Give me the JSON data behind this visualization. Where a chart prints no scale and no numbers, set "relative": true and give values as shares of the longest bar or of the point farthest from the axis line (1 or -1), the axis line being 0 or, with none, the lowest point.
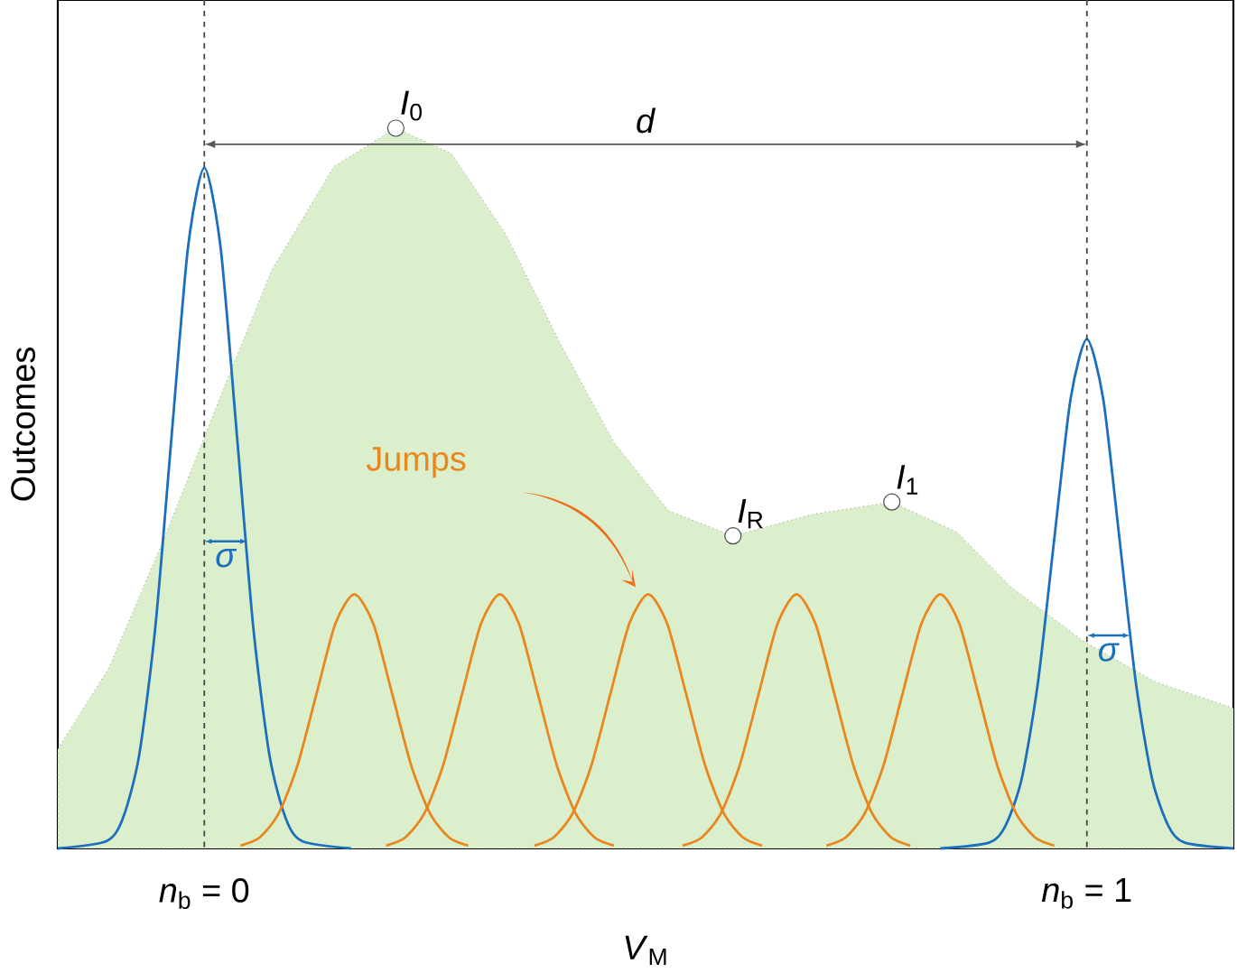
{
  "chart_data": {
    "type": "line",
    "relative": true,
    "xlabel": "*V*$_{M}$",
    "ylabel": "Outcomes",
    "xlim": [
      -0.166,
      1.166
    ],
    "xticks": [
      {
        "value": 0,
        "label": "*n*$_{b}$ = 0"
      },
      {
        "value": 1,
        "label": "*n*$_{b}$ = 1"
      }
    ],
    "series": [
      {
        "type": "area",
        "color": "#dcefcd",
        "line_style": "dotted",
        "x": [
          -0.166,
          -0.108,
          -0.047,
          0.014,
          0.076,
          0.147,
          0.217,
          0.28,
          0.342,
          0.403,
          0.464,
          0.526,
          0.599,
          0.689,
          0.779,
          0.853,
          0.914,
          0.996,
          1.078,
          1.166
        ],
        "values": [
          0.138,
          0.251,
          0.426,
          0.614,
          0.802,
          0.947,
          1.0,
          0.965,
          0.852,
          0.702,
          0.564,
          0.469,
          0.434,
          0.464,
          0.481,
          0.439,
          0.363,
          0.288,
          0.231,
          0.195
        ]
      },
      {
        "color": "#1b6fbd",
        "x": [
          -0.166,
          -0.111,
          -0.0925,
          -0.074,
          -0.0555,
          -0.037,
          -0.0185,
          0,
          0.0185,
          0.037,
          0.0555,
          0.074,
          0.0925,
          0.111,
          0.166
        ],
        "values": [
          0.0,
          0.01,
          0.041,
          0.128,
          0.307,
          0.573,
          0.834,
          0.945,
          0.834,
          0.573,
          0.307,
          0.128,
          0.041,
          0.01,
          0.0
        ]
      },
      {
        "color": "#1b6fbd",
        "x": [
          0.834,
          0.889,
          0.9075,
          0.926,
          0.9445,
          0.963,
          0.9815,
          1,
          1.0185,
          1.037,
          1.0555,
          1.074,
          1.0925,
          1.111,
          1.166
        ],
        "values": [
          0.0,
          0.008,
          0.031,
          0.096,
          0.23,
          0.429,
          0.624,
          0.707,
          0.624,
          0.429,
          0.23,
          0.096,
          0.031,
          0.008,
          0.0
        ]
      },
      {
        "color": "#e8871e",
        "x": [
          0.041,
          0.0625,
          0.084,
          0.1055,
          0.127,
          0.1485,
          0.17,
          0.1915,
          0.213,
          0.2345,
          0.256,
          0.2775,
          0.299
        ],
        "values": [
          0.004,
          0.015,
          0.048,
          0.115,
          0.214,
          0.312,
          0.353,
          0.312,
          0.214,
          0.115,
          0.048,
          0.015,
          0.004
        ]
      },
      {
        "color": "#e8871e",
        "x": [
          0.206,
          0.2275,
          0.249,
          0.2705,
          0.292,
          0.3135,
          0.335,
          0.3565,
          0.378,
          0.3995,
          0.421,
          0.4425,
          0.464
        ],
        "values": [
          0.004,
          0.015,
          0.048,
          0.115,
          0.214,
          0.312,
          0.353,
          0.312,
          0.214,
          0.115,
          0.048,
          0.015,
          0.004
        ]
      },
      {
        "color": "#e8871e",
        "x": [
          0.374,
          0.3955,
          0.417,
          0.4385,
          0.46,
          0.4815,
          0.503,
          0.5245,
          0.546,
          0.5675,
          0.589,
          0.6105,
          0.632
        ],
        "values": [
          0.004,
          0.015,
          0.048,
          0.115,
          0.214,
          0.312,
          0.353,
          0.312,
          0.214,
          0.115,
          0.048,
          0.015,
          0.004
        ]
      },
      {
        "color": "#e8871e",
        "x": [
          0.542,
          0.5635,
          0.585,
          0.6065,
          0.628,
          0.6495,
          0.671,
          0.6925,
          0.714,
          0.7355,
          0.757,
          0.7785,
          0.8
        ],
        "values": [
          0.004,
          0.015,
          0.048,
          0.115,
          0.214,
          0.312,
          0.353,
          0.312,
          0.214,
          0.115,
          0.048,
          0.015,
          0.004
        ]
      },
      {
        "color": "#e8871e",
        "x": [
          0.705,
          0.7265,
          0.748,
          0.7695,
          0.791,
          0.8125,
          0.834,
          0.8555,
          0.877,
          0.8985,
          0.92,
          0.9415,
          0.963
        ],
        "values": [
          0.004,
          0.015,
          0.048,
          0.115,
          0.214,
          0.312,
          0.353,
          0.312,
          0.214,
          0.115,
          0.048,
          0.015,
          0.004
        ]
      }
    ],
    "ref_lines": [
      {
        "axis": "x",
        "value": 0,
        "color": "#444444",
        "line_style": "dashed"
      },
      {
        "axis": "x",
        "value": 1,
        "color": "#444444",
        "line_style": "dashed"
      }
    ],
    "annotations": [
      {
        "text": "*I*$_{0}$",
        "x": 0.217,
        "y": 1.0
      },
      "*d*",
      {
        "text": "*I*$_{R}$",
        "x": 0.599,
        "y": 0.434
      },
      {
        "text": "*I*$_{1}$",
        "x": 0.779,
        "y": 0.481
      },
      "Jumps",
      "*σ*",
      "*σ*"
    ]
  }
}
